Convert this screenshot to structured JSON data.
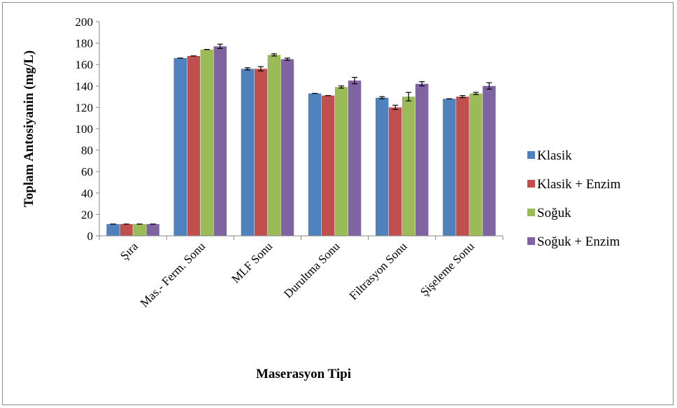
{
  "chart_data": {
    "type": "bar",
    "title": "",
    "xlabel": "Maserasyon Tipi",
    "ylabel": "Toplam Antosiyanin (mg/L)",
    "ylim": [
      0,
      200
    ],
    "yticks": [
      0,
      20,
      40,
      60,
      80,
      100,
      120,
      140,
      160,
      180,
      200
    ],
    "grid": false,
    "legend_position": "right",
    "categories": [
      "Şıra",
      "Mas.- Ferm. Sonu",
      "MLF Sonu",
      "Durultma Sonu",
      "Filtrasyon Sonu",
      "Şişeleme Sonu"
    ],
    "series": [
      {
        "name": "Klasik",
        "color": "#4f81bd",
        "values": [
          11,
          166,
          156,
          133,
          129,
          128
        ],
        "errors": [
          0,
          0,
          1,
          0,
          1,
          0
        ]
      },
      {
        "name": "Klasik + Enzim",
        "color": "#c0504d",
        "values": [
          11,
          168,
          156,
          131,
          120,
          130
        ],
        "errors": [
          0,
          0,
          2,
          0,
          2,
          1
        ]
      },
      {
        "name": "Soğuk",
        "color": "#9bbb59",
        "values": [
          11,
          174,
          169,
          139,
          130,
          133
        ],
        "errors": [
          0,
          0,
          1,
          1,
          4,
          1
        ]
      },
      {
        "name": "Soğuk + Enzim",
        "color": "#8064a2",
        "values": [
          11,
          177,
          165,
          145,
          142,
          140
        ],
        "errors": [
          0,
          2,
          1,
          3,
          2,
          3
        ]
      }
    ]
  }
}
